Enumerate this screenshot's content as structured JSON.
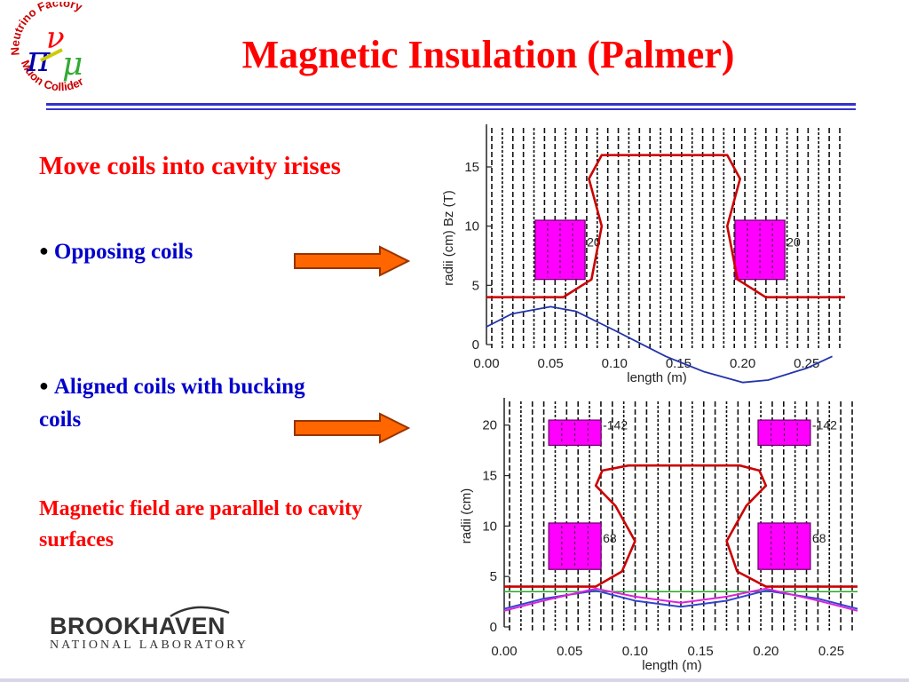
{
  "slide": {
    "title": "Magnetic Insulation (Palmer)",
    "heading": "Move coils into cavity irises",
    "bullet1": "Opposing coils",
    "bullet2": "Aligned coils with bucking coils",
    "note": "Magnetic field are parallel to cavity surfaces"
  },
  "logo": {
    "top_text": "Neutrino Factory",
    "bottom_text": "Muon Collider",
    "symbols": "πνμ",
    "institution": "BROOKHAVEN",
    "institution_sub": "NATIONAL LABORATORY"
  },
  "colors": {
    "title": "#ff0000",
    "emphasis_blue": "#0000cc",
    "coil_fill": "#ff00ff",
    "cavity_curve": "#cc0000",
    "field_curve": "#2233aa",
    "arrow_fill": "#ff6600"
  },
  "chart_data": [
    {
      "type": "line",
      "name": "opposing-coils",
      "xlabel": "length   (m)",
      "ylabel": "radii (cm)   Bz (T)",
      "xlim": [
        0.0,
        0.28
      ],
      "ylim": [
        0,
        18
      ],
      "x_ticks": [
        "0.00",
        "0.05",
        "0.10",
        "0.15",
        "0.20",
        "0.25"
      ],
      "y_ticks": [
        "0",
        "5",
        "10",
        "15"
      ],
      "coil_labels": [
        "20",
        "20"
      ],
      "coils": [
        {
          "x0": 0.038,
          "x1": 0.077,
          "y0": 5.5,
          "y1": 10.5
        },
        {
          "x0": 0.194,
          "x1": 0.233,
          "y0": 5.5,
          "y1": 10.5
        }
      ],
      "cavity": {
        "x": [
          0.0,
          0.06,
          0.082,
          0.09,
          0.08,
          0.09,
          0.188,
          0.198,
          0.188,
          0.196,
          0.218,
          0.28
        ],
        "y": [
          4,
          4,
          5.5,
          10,
          14,
          16,
          16,
          14,
          10,
          5.5,
          4,
          4
        ]
      },
      "bz": {
        "x": [
          0.0,
          0.02,
          0.05,
          0.07,
          0.1,
          0.14,
          0.17,
          0.2,
          0.22,
          0.25,
          0.27
        ],
        "y": [
          1.5,
          2.6,
          3.2,
          2.8,
          1.2,
          -1.0,
          -2.3,
          -3.2,
          -3.0,
          -2.0,
          -1.0
        ]
      }
    },
    {
      "type": "line",
      "name": "aligned-with-bucking-coils",
      "xlabel": "length   (m)",
      "ylabel": "radii   (cm)",
      "xlim": [
        0.0,
        0.27
      ],
      "ylim": [
        0,
        22
      ],
      "x_ticks": [
        "0.00",
        "0.05",
        "0.10",
        "0.15",
        "0.20",
        "0.25"
      ],
      "y_ticks": [
        "0",
        "5",
        "10",
        "15",
        "20"
      ],
      "coil_labels": [
        "-142",
        "-142",
        "68",
        "68"
      ],
      "coils": [
        {
          "x0": 0.034,
          "x1": 0.074,
          "y0": 18,
          "y1": 20.5
        },
        {
          "x0": 0.194,
          "x1": 0.234,
          "y0": 18,
          "y1": 20.5
        },
        {
          "x0": 0.034,
          "x1": 0.074,
          "y0": 5.7,
          "y1": 10.3
        },
        {
          "x0": 0.194,
          "x1": 0.234,
          "y0": 5.7,
          "y1": 10.3
        }
      ],
      "cavity": {
        "x": [
          0.0,
          0.07,
          0.09,
          0.1,
          0.085,
          0.07,
          0.075,
          0.095,
          0.18,
          0.195,
          0.2,
          0.185,
          0.17,
          0.178,
          0.2,
          0.27
        ],
        "y": [
          4,
          4,
          5.5,
          8.5,
          12,
          14,
          15.5,
          16,
          16,
          15.5,
          14,
          12,
          8.5,
          5.5,
          4,
          4
        ]
      },
      "field_magenta": {
        "x": [
          0.0,
          0.03,
          0.07,
          0.1,
          0.135,
          0.17,
          0.2,
          0.24,
          0.27
        ],
        "y": [
          1.6,
          2.6,
          3.8,
          3.0,
          2.4,
          3.0,
          3.8,
          2.6,
          1.6
        ]
      },
      "field_blue": {
        "x": [
          0.0,
          0.03,
          0.07,
          0.1,
          0.135,
          0.17,
          0.2,
          0.24,
          0.27
        ],
        "y": [
          1.8,
          2.8,
          3.6,
          2.6,
          2.0,
          2.6,
          3.6,
          2.8,
          1.8
        ]
      },
      "field_green": {
        "x": [
          0.0,
          0.27
        ],
        "y": [
          3.5,
          3.5
        ]
      }
    }
  ]
}
